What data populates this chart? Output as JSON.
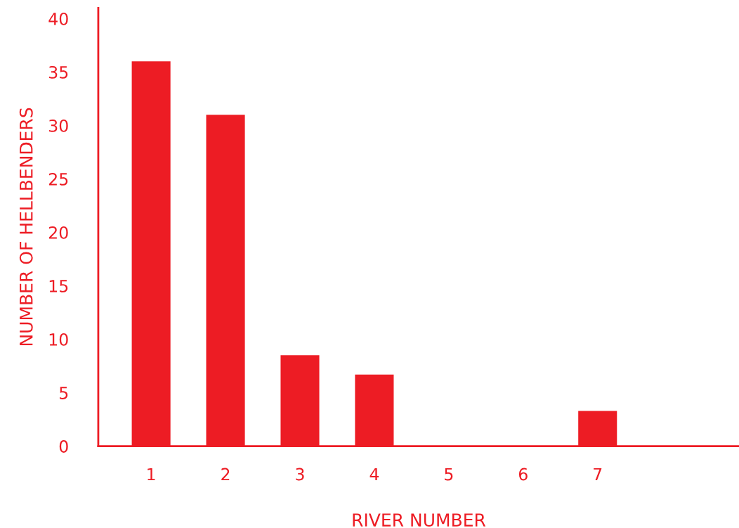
{
  "chart_data": {
    "type": "bar",
    "xlabel": "RIVER NUMBER",
    "ylabel": "NUMBER OF HELLBENDERS",
    "categories": [
      "1",
      "2",
      "3",
      "4",
      "5",
      "6",
      "7"
    ],
    "values": [
      36,
      31,
      8.5,
      6.7,
      0,
      0,
      3.3
    ],
    "color": "#ed1c24",
    "ylim": [
      0,
      41
    ],
    "yticks": [
      0,
      5,
      10,
      15,
      20,
      25,
      30,
      35,
      40
    ],
    "grid": false
  }
}
